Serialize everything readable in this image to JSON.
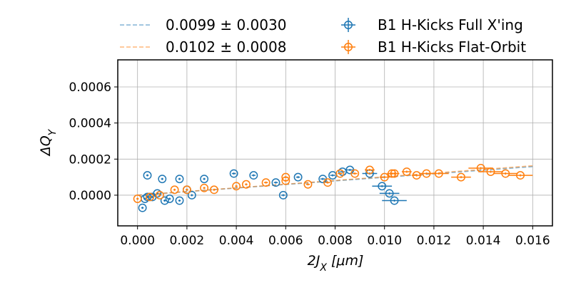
{
  "chart_data": {
    "type": "scatter",
    "title": "",
    "xlabel": "2J_X [μm]",
    "ylabel": "ΔQ_Y",
    "xlim": [
      -0.0008,
      0.0168
    ],
    "ylim": [
      -0.00017,
      0.00075
    ],
    "x_ticks": [
      0.0,
      0.002,
      0.004,
      0.006,
      0.008,
      0.01,
      0.012,
      0.014,
      0.016
    ],
    "x_tick_labels": [
      "0.000",
      "0.002",
      "0.004",
      "0.006",
      "0.008",
      "0.010",
      "0.012",
      "0.014",
      "0.016"
    ],
    "y_ticks": [
      0.0,
      0.0002,
      0.0004,
      0.0006
    ],
    "y_tick_labels": [
      "0.0000",
      "0.0002",
      "0.0004",
      "0.0006"
    ],
    "grid": true,
    "legend_position": "top, above plot, two columns",
    "fit_lines": [
      {
        "label": "0.0099 ± 0.0030",
        "color": "#1f77b4",
        "slope": 0.0099,
        "x_range": [
          0.0,
          0.016
        ]
      },
      {
        "label": "0.0102 ± 0.0008",
        "color": "#ff7f0e",
        "slope": 0.0102,
        "x_range": [
          0.0,
          0.016
        ]
      }
    ],
    "series": [
      {
        "name": "B1 H-Kicks Full X'ing",
        "color": "#1f77b4",
        "points": [
          {
            "x": 0.0002,
            "y": -7e-05,
            "xerr": 5e-05
          },
          {
            "x": 0.0003,
            "y": -2e-05,
            "xerr": 5e-05
          },
          {
            "x": 0.0004,
            "y": 0.00011,
            "xerr": 5e-05
          },
          {
            "x": 0.0004,
            "y": -1e-05,
            "xerr": 5e-05
          },
          {
            "x": 0.0006,
            "y": -1e-05,
            "xerr": 5e-05
          },
          {
            "x": 0.0008,
            "y": 1e-05,
            "xerr": 5e-05
          },
          {
            "x": 0.001,
            "y": 9e-05,
            "xerr": 5e-05
          },
          {
            "x": 0.0011,
            "y": -3e-05,
            "xerr": 5e-05
          },
          {
            "x": 0.0013,
            "y": -2e-05,
            "xerr": 5e-05
          },
          {
            "x": 0.0017,
            "y": 9e-05,
            "xerr": 5e-05
          },
          {
            "x": 0.0017,
            "y": -3e-05,
            "xerr": 5e-05
          },
          {
            "x": 0.002,
            "y": 3e-05,
            "xerr": 5e-05
          },
          {
            "x": 0.0022,
            "y": 0.0,
            "xerr": 5e-05
          },
          {
            "x": 0.0027,
            "y": 9e-05,
            "xerr": 5e-05
          },
          {
            "x": 0.0039,
            "y": 0.00012,
            "xerr": 8e-05
          },
          {
            "x": 0.0047,
            "y": 0.00011,
            "xerr": 8e-05
          },
          {
            "x": 0.0056,
            "y": 7e-05,
            "xerr": 8e-05
          },
          {
            "x": 0.0059,
            "y": 0.0,
            "xerr": 8e-05
          },
          {
            "x": 0.0065,
            "y": 0.0001,
            "xerr": 8e-05
          },
          {
            "x": 0.0075,
            "y": 9e-05,
            "xerr": 0.0001
          },
          {
            "x": 0.0079,
            "y": 0.00011,
            "xerr": 0.0001
          },
          {
            "x": 0.0083,
            "y": 0.00013,
            "xerr": 0.0001
          },
          {
            "x": 0.0086,
            "y": 0.00014,
            "xerr": 0.0002
          },
          {
            "x": 0.0094,
            "y": 0.00012,
            "xerr": 0.0003
          },
          {
            "x": 0.0099,
            "y": 5e-05,
            "xerr": 0.0004
          },
          {
            "x": 0.0102,
            "y": 1e-05,
            "xerr": 0.0004
          },
          {
            "x": 0.0104,
            "y": -3e-05,
            "xerr": 0.0005
          }
        ]
      },
      {
        "name": "B1 H-Kicks Flat-Orbit",
        "color": "#ff7f0e",
        "points": [
          {
            "x": 0.0,
            "y": -2e-05,
            "xerr": 5e-05
          },
          {
            "x": 0.0005,
            "y": -1e-05,
            "xerr": 5e-05
          },
          {
            "x": 0.0009,
            "y": 0.0,
            "xerr": 5e-05
          },
          {
            "x": 0.0015,
            "y": 3e-05,
            "xerr": 5e-05
          },
          {
            "x": 0.002,
            "y": 3e-05,
            "xerr": 5e-05
          },
          {
            "x": 0.0027,
            "y": 4e-05,
            "xerr": 5e-05
          },
          {
            "x": 0.0031,
            "y": 3e-05,
            "xerr": 5e-05
          },
          {
            "x": 0.004,
            "y": 5e-05,
            "xerr": 5e-05
          },
          {
            "x": 0.0044,
            "y": 6e-05,
            "xerr": 5e-05
          },
          {
            "x": 0.0052,
            "y": 7e-05,
            "xerr": 8e-05
          },
          {
            "x": 0.006,
            "y": 0.0001,
            "xerr": 8e-05
          },
          {
            "x": 0.006,
            "y": 8e-05,
            "xerr": 8e-05
          },
          {
            "x": 0.0069,
            "y": 6e-05,
            "xerr": 8e-05
          },
          {
            "x": 0.0077,
            "y": 7e-05,
            "xerr": 0.0001
          },
          {
            "x": 0.0082,
            "y": 0.00012,
            "xerr": 0.0001
          },
          {
            "x": 0.0088,
            "y": 0.00012,
            "xerr": 0.0001
          },
          {
            "x": 0.0094,
            "y": 0.00014,
            "xerr": 0.0002
          },
          {
            "x": 0.01,
            "y": 0.0001,
            "xerr": 0.0002
          },
          {
            "x": 0.0103,
            "y": 0.00012,
            "xerr": 0.0002
          },
          {
            "x": 0.0104,
            "y": 0.00012,
            "xerr": 0.0002
          },
          {
            "x": 0.0109,
            "y": 0.00013,
            "xerr": 0.0002
          },
          {
            "x": 0.0113,
            "y": 0.00011,
            "xerr": 0.0002
          },
          {
            "x": 0.0117,
            "y": 0.00012,
            "xerr": 0.0003
          },
          {
            "x": 0.0122,
            "y": 0.00012,
            "xerr": 0.0004
          },
          {
            "x": 0.0131,
            "y": 0.0001,
            "xerr": 0.0004
          },
          {
            "x": 0.0139,
            "y": 0.00015,
            "xerr": 0.0005
          },
          {
            "x": 0.0143,
            "y": 0.00013,
            "xerr": 0.0005
          },
          {
            "x": 0.0149,
            "y": 0.00012,
            "xerr": 0.0005
          },
          {
            "x": 0.0155,
            "y": 0.00011,
            "xerr": 0.0005
          }
        ]
      }
    ]
  }
}
